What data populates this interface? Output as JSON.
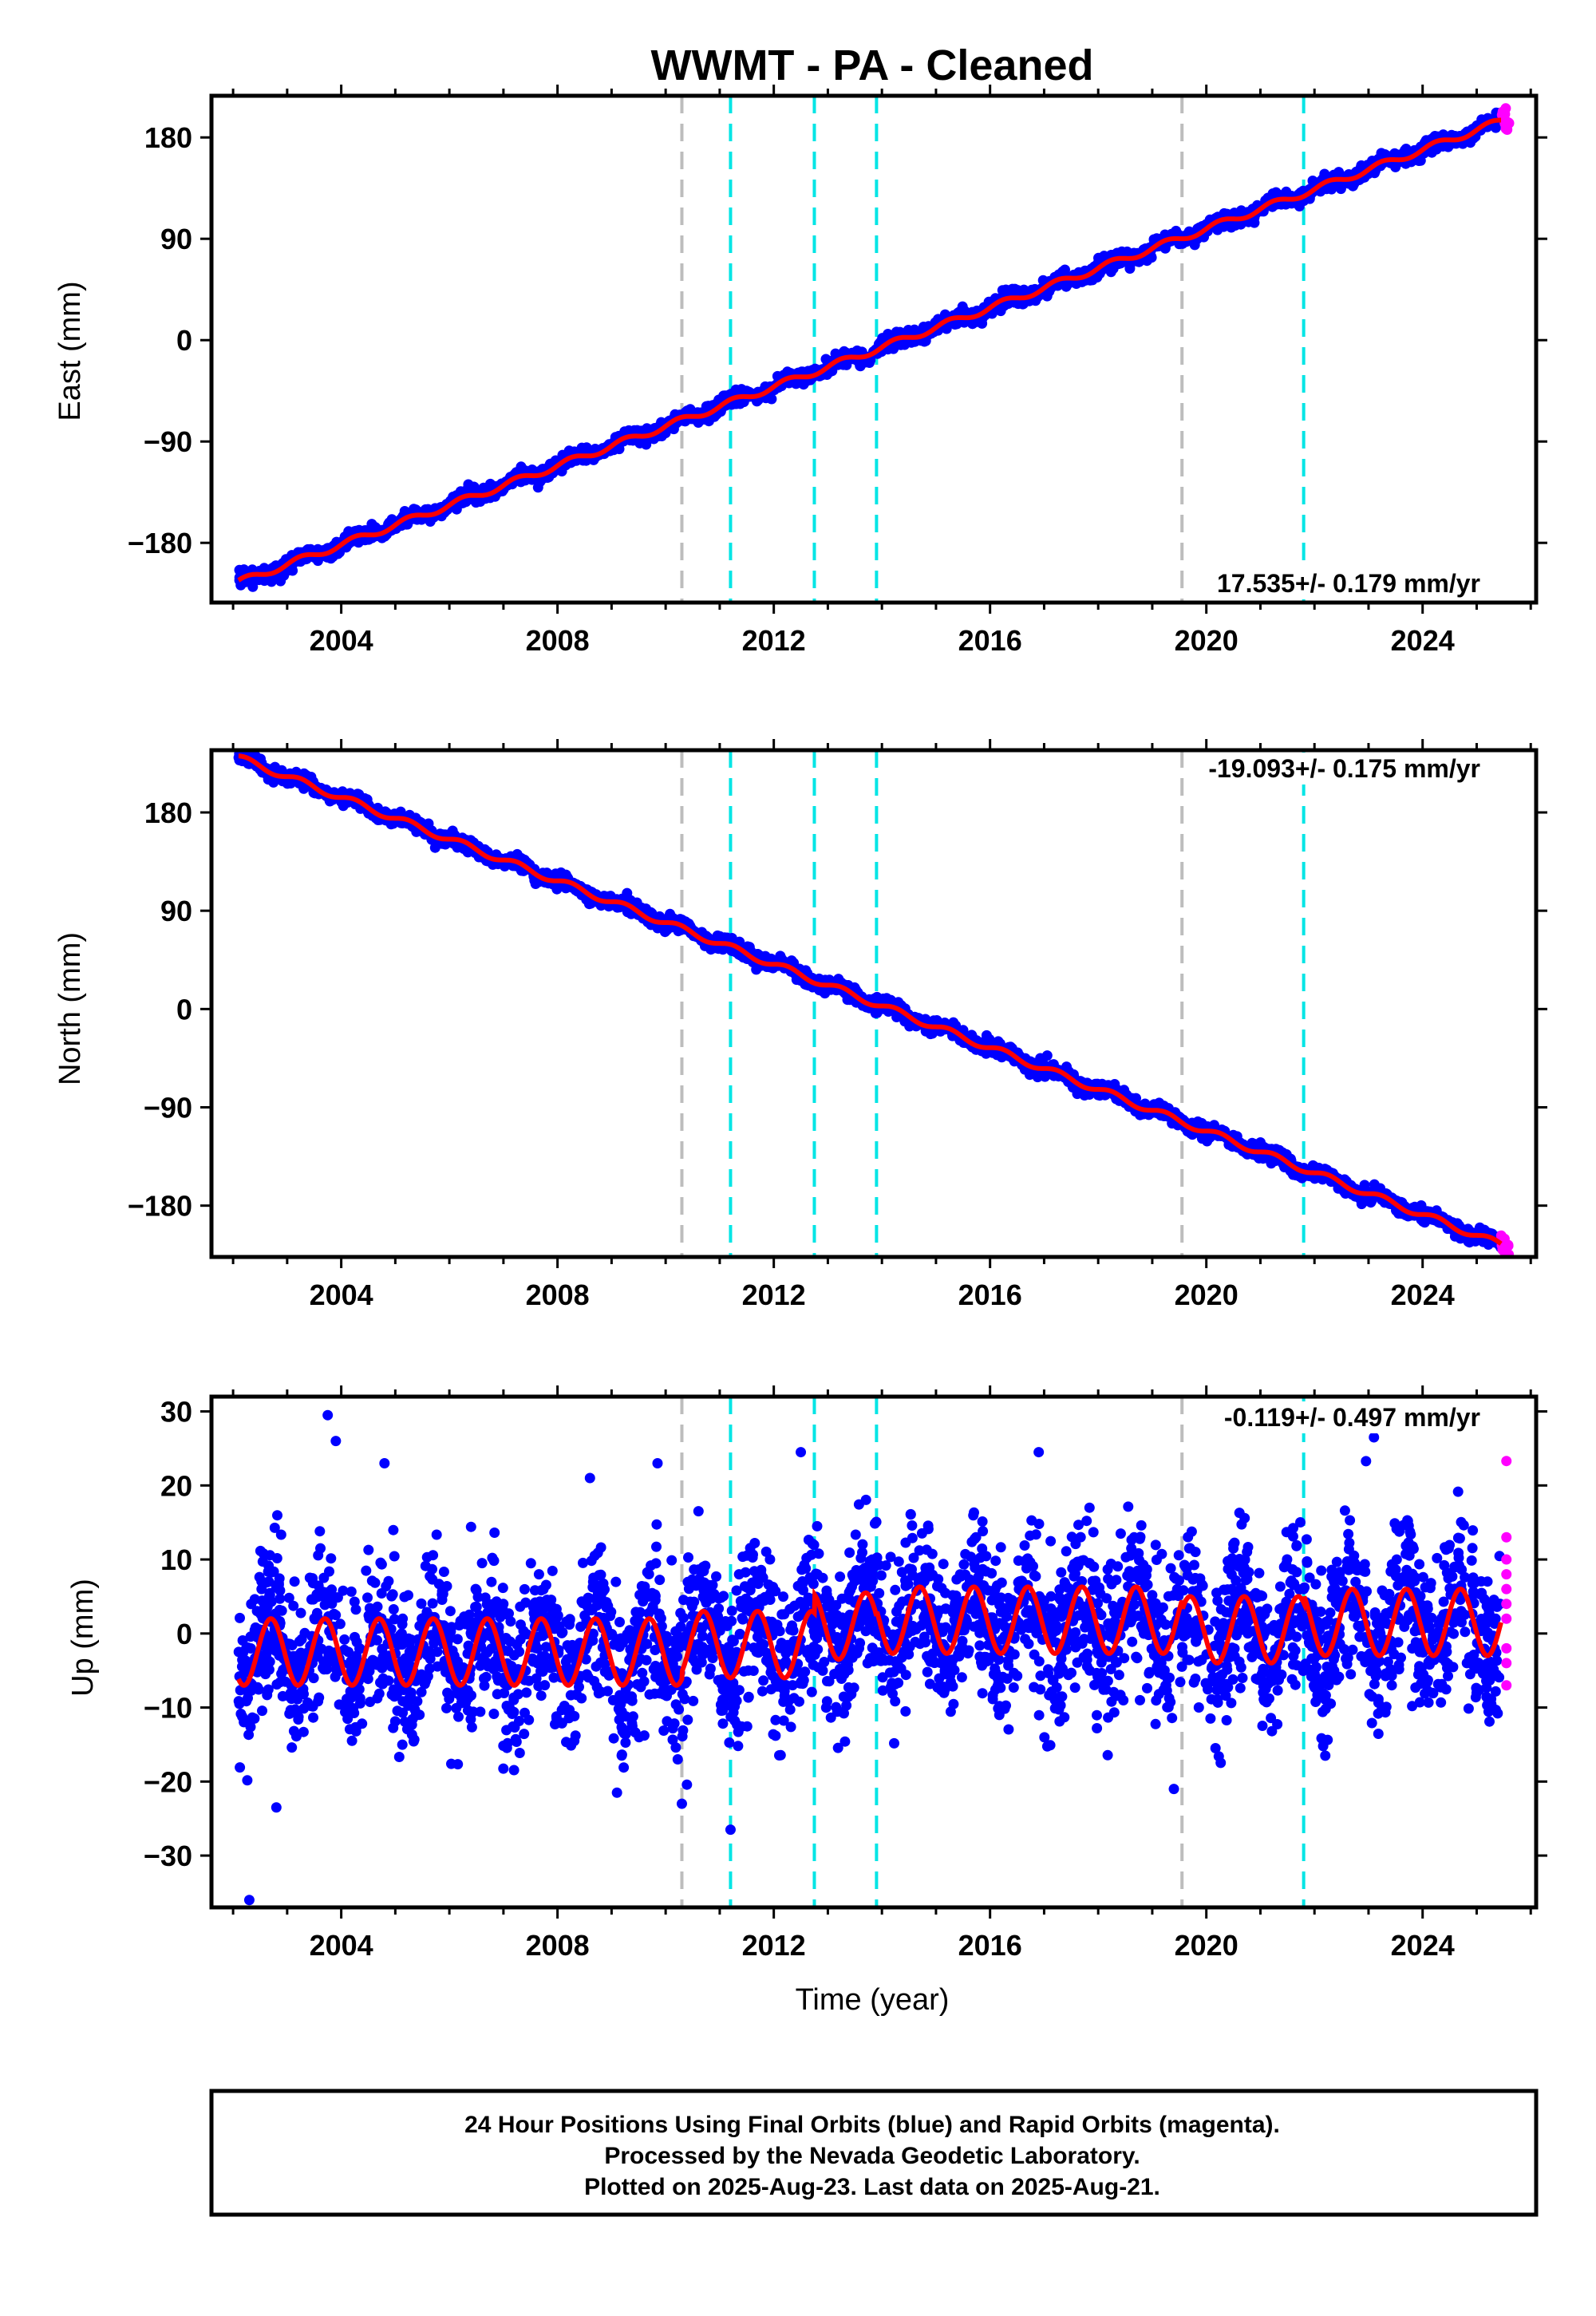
{
  "title": "WWMT  - PA - Cleaned",
  "colors": {
    "final": "#0000ff",
    "rapid": "#ff00ff",
    "model": "#ff0000",
    "eq_line": "#bdbdbd",
    "eq_line2": "#00e5e5"
  },
  "chart_data": [
    {
      "type": "scatter",
      "name": "east",
      "ylabel": "East (mm)",
      "xlabel": "",
      "xlim": [
        2001.6,
        2026.1
      ],
      "ylim": [
        -233,
        217
      ],
      "yticks": [
        -180,
        -90,
        0,
        90,
        180
      ],
      "ytick_labels": [
        "−180",
        "−90",
        "0",
        "90",
        "180"
      ],
      "xticks": [
        2004,
        2008,
        2012,
        2016,
        2020,
        2024
      ],
      "xtick_labels": [
        "2004",
        "2008",
        "2012",
        "2016",
        "2020",
        "2024"
      ],
      "rate_label": "17.535+/- 0.179 mm/yr",
      "rate_position": "bottom-right",
      "trend": {
        "t0": 2002.1,
        "y0": -215,
        "rate": 17.535
      },
      "series": [
        {
          "label": "final",
          "x_range": [
            2002.1,
            2025.45
          ],
          "noise": 3.5
        },
        {
          "label": "rapid",
          "x_range": [
            2025.45,
            2025.6
          ],
          "noise": 4
        }
      ],
      "vlines": [
        {
          "x": 2010.3,
          "style": "gray"
        },
        {
          "x": 2011.2,
          "style": "cyan"
        },
        {
          "x": 2012.75,
          "style": "cyan"
        },
        {
          "x": 2013.9,
          "style": "cyan"
        },
        {
          "x": 2019.55,
          "style": "gray"
        },
        {
          "x": 2021.8,
          "style": "cyan"
        }
      ]
    },
    {
      "type": "scatter",
      "name": "north",
      "ylabel": "North (mm)",
      "xlabel": "",
      "xlim": [
        2001.6,
        2026.1
      ],
      "ylim": [
        -227,
        237
      ],
      "yticks": [
        -180,
        -90,
        0,
        90,
        180
      ],
      "ytick_labels": [
        "−180",
        "−90",
        "0",
        "90",
        "180"
      ],
      "xticks": [
        2004,
        2008,
        2012,
        2016,
        2020,
        2024
      ],
      "xtick_labels": [
        "2004",
        "2008",
        "2012",
        "2016",
        "2020",
        "2024"
      ],
      "rate_label": "-19.093+/- 0.175 mm/yr",
      "rate_position": "top-right",
      "trend": {
        "t0": 2002.1,
        "y0": 230,
        "rate": -19.093
      },
      "series": [
        {
          "label": "final",
          "x_range": [
            2002.1,
            2025.45
          ],
          "noise": 3.5
        },
        {
          "label": "rapid",
          "x_range": [
            2025.45,
            2025.6
          ],
          "noise": 4
        }
      ],
      "vlines": [
        {
          "x": 2010.3,
          "style": "gray"
        },
        {
          "x": 2011.2,
          "style": "cyan"
        },
        {
          "x": 2012.75,
          "style": "cyan"
        },
        {
          "x": 2013.9,
          "style": "cyan"
        },
        {
          "x": 2019.55,
          "style": "gray"
        },
        {
          "x": 2021.8,
          "style": "cyan"
        }
      ]
    },
    {
      "type": "scatter",
      "name": "up",
      "ylabel": "Up (mm)",
      "xlabel": "Time (year)",
      "xlim": [
        2001.6,
        2026.1
      ],
      "ylim": [
        -37,
        32
      ],
      "yticks": [
        -30,
        -20,
        -10,
        0,
        10,
        20,
        30
      ],
      "ytick_labels": [
        "−30",
        "−20",
        "−10",
        "0",
        "10",
        "20",
        "30"
      ],
      "xticks": [
        2004,
        2008,
        2012,
        2016,
        2020,
        2024
      ],
      "xtick_labels": [
        "2004",
        "2008",
        "2012",
        "2016",
        "2020",
        "2024"
      ],
      "rate_label": "-0.119+/- 0.497 mm/yr",
      "rate_position": "top-right",
      "seasonal": {
        "amplitude": 4.5,
        "period": 1.0
      },
      "offsets": [
        {
          "x": 2002.1,
          "y": -2.5
        },
        {
          "x": 2010.3,
          "y": -1.5
        },
        {
          "x": 2012.75,
          "y": 1.0
        },
        {
          "x": 2013.9,
          "y": 1.8
        },
        {
          "x": 2019.55,
          "y": 0.5
        },
        {
          "x": 2021.8,
          "y": 1.5
        }
      ],
      "series": [
        {
          "label": "final",
          "x_range": [
            2002.1,
            2025.45
          ],
          "noise": 6
        },
        {
          "label": "rapid",
          "x_range": [
            2025.45,
            2025.6
          ],
          "noise": 6
        }
      ],
      "outliers": [
        [
          2002.3,
          -36
        ],
        [
          2003.75,
          29.5
        ],
        [
          2003.9,
          26
        ],
        [
          2004.8,
          23
        ],
        [
          2008.6,
          21
        ],
        [
          2009.85,
          23
        ],
        [
          2011.2,
          -26.5
        ],
        [
          2012.5,
          24.5
        ],
        [
          2016.9,
          24.5
        ],
        [
          2023.1,
          26.5
        ],
        [
          2010.3,
          -23
        ],
        [
          2019.4,
          -21
        ],
        [
          2009.1,
          -21.5
        ],
        [
          2002.8,
          -23.5
        ],
        [
          2022.2,
          -16.5
        ]
      ],
      "rapid_points": [
        [
          2025.55,
          23.3
        ],
        [
          2025.55,
          13
        ],
        [
          2025.55,
          10
        ],
        [
          2025.55,
          8
        ],
        [
          2025.55,
          6
        ],
        [
          2025.55,
          4
        ],
        [
          2025.55,
          2
        ],
        [
          2025.55,
          -2
        ],
        [
          2025.55,
          -4
        ],
        [
          2025.55,
          -7
        ]
      ],
      "vlines": [
        {
          "x": 2010.3,
          "style": "gray"
        },
        {
          "x": 2011.2,
          "style": "cyan"
        },
        {
          "x": 2012.75,
          "style": "cyan"
        },
        {
          "x": 2013.9,
          "style": "cyan"
        },
        {
          "x": 2019.55,
          "style": "gray"
        },
        {
          "x": 2021.8,
          "style": "cyan"
        }
      ]
    }
  ],
  "footer": {
    "line1": "24 Hour Positions Using Final Orbits (blue) and Rapid Orbits (magenta).",
    "line2": "Processed by the Nevada Geodetic Laboratory.",
    "line3": "Plotted on 2025-Aug-23. Last data on 2025-Aug-21."
  }
}
